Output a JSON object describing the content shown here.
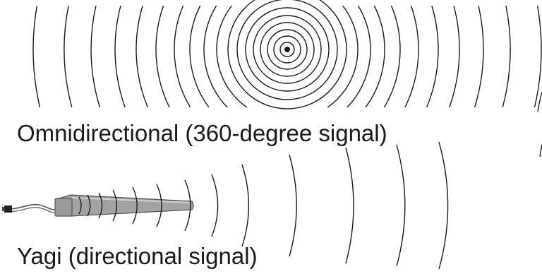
{
  "captions": {
    "omnidirectional": "Omnidirectional (360-degree signal)",
    "yagi": "Yagi (directional signal)"
  },
  "colors": {
    "line": "#1a1a1a",
    "antenna_fill": "#a0a0a0",
    "antenna_stroke": "#555555",
    "text": "#1a1a1a"
  },
  "icons": {
    "omni_source": "concentric-dot-icon",
    "yagi_antenna": "yagi-antenna-icon"
  }
}
